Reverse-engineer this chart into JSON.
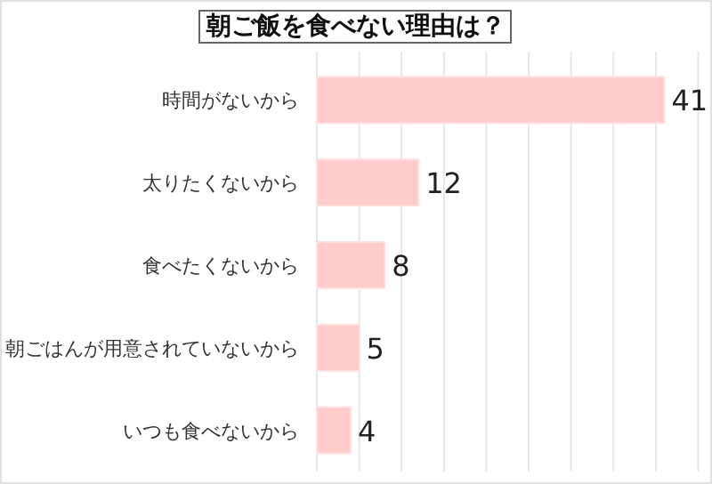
{
  "chart_data": {
    "type": "bar",
    "orientation": "horizontal",
    "title": "朝ご飯を食べない理由は？",
    "categories": [
      "時間がないから",
      "太りたくないから",
      "食べたくないから",
      "朝ごはんが用意されていないから",
      "いつも食べないから"
    ],
    "values": [
      41,
      12,
      8,
      5,
      4
    ],
    "color": "#ffcccc",
    "data_labels": true,
    "grid": "x",
    "xlim": [
      0,
      46
    ],
    "xticks": [
      {
        "value": 0,
        "label": null
      },
      {
        "value": 5,
        "label": null
      },
      {
        "value": 10,
        "label": null
      },
      {
        "value": 15,
        "label": null
      },
      {
        "value": 20,
        "label": null
      },
      {
        "value": 25,
        "label": null
      },
      {
        "value": 30,
        "label": null
      },
      {
        "value": 35,
        "label": null
      },
      {
        "value": 40,
        "label": null
      },
      {
        "value": 45,
        "label": null
      }
    ]
  }
}
